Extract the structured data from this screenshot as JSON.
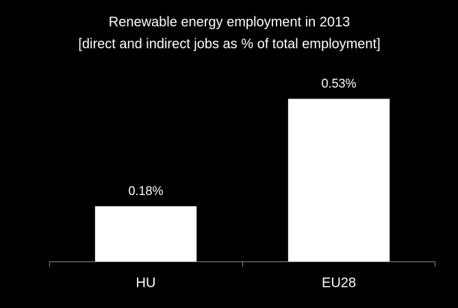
{
  "chart_data": {
    "type": "bar",
    "title": "Renewable energy employment in 2013",
    "subtitle": "[direct and indirect jobs as % of total employment]",
    "categories": [
      "HU",
      "EU28"
    ],
    "values": [
      0.18,
      0.53
    ],
    "value_labels": [
      "0.18%",
      "0.53%"
    ],
    "color": "#ffffff",
    "ylim": [
      0,
      0.6
    ]
  }
}
